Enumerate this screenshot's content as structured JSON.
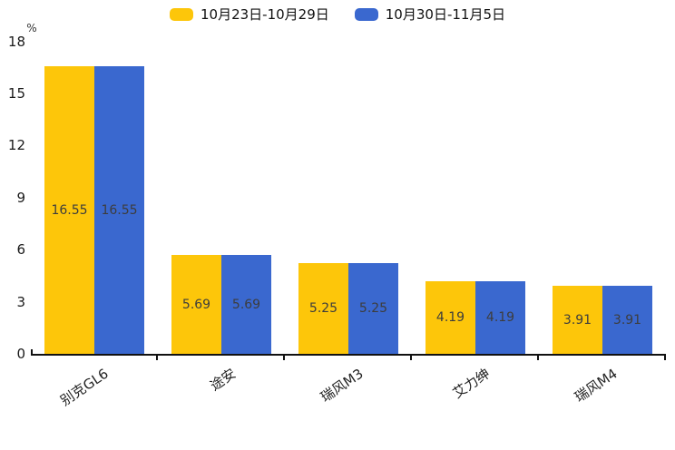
{
  "chart_data": {
    "type": "bar",
    "title": "",
    "ylabel": "%",
    "categories": [
      "别克GL6",
      "途安",
      "瑞风M3",
      "艾力绅",
      "瑞风M4"
    ],
    "series": [
      {
        "name": "10月23日-10月29日",
        "color": "#FDC60A",
        "values": [
          16.55,
          5.69,
          5.25,
          4.19,
          3.91
        ]
      },
      {
        "name": "10月30日-11月5日",
        "color": "#3A68CF",
        "values": [
          16.55,
          5.69,
          5.25,
          4.19,
          3.91
        ]
      }
    ],
    "ylim": [
      0,
      18
    ],
    "yticks": [
      0,
      3,
      6,
      9,
      12,
      15,
      18
    ],
    "grid": false,
    "legend_position": "top-center",
    "value_label_position": "inside-center",
    "value_label_format": "2-decimals"
  },
  "style": {
    "axis_color": "#111111",
    "tick_label_color": "#1a1a1a",
    "value_label_color": "#3d3d3d",
    "category_label_color": "#222222",
    "legend_text_color": "#111111",
    "background": "#ffffff"
  }
}
